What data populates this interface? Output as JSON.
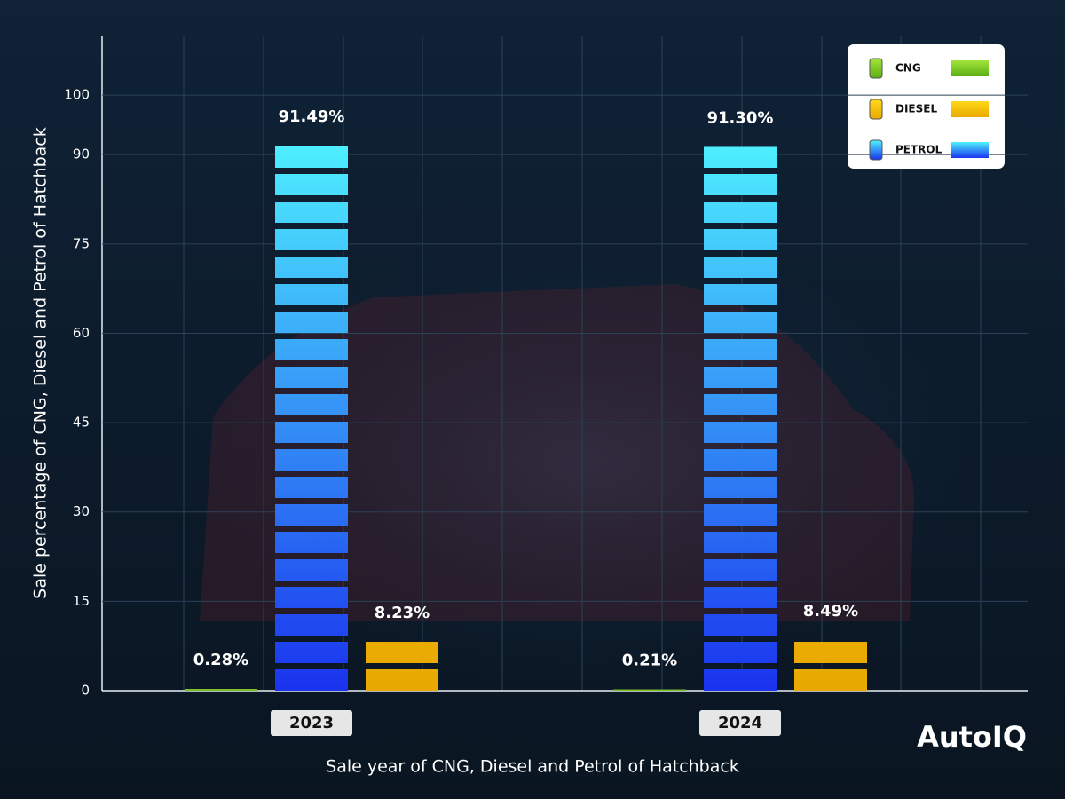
{
  "chart_data": {
    "type": "bar",
    "x_label": "Sale year of CNG, Diesel and Petrol of Hatchback",
    "y_label": "Sale percentage of CNG, Diesel and Petrol of Hatchback",
    "categories": [
      "2023",
      "2024"
    ],
    "series": [
      {
        "name": "CNG",
        "color": [
          "#5cae14",
          "#a4e43a"
        ],
        "values": [
          0.28,
          0.21
        ],
        "value_labels": [
          "0.28%",
          "0.21%"
        ]
      },
      {
        "name": "DIESEL",
        "color": [
          "#e8a800",
          "#ffd81a"
        ],
        "values": [
          8.23,
          8.49
        ],
        "value_labels": [
          "8.23%",
          "8.49%"
        ]
      },
      {
        "name": "PETROL",
        "color": [
          "#1a33ee",
          "#4ff2ff"
        ],
        "values": [
          91.49,
          91.3
        ],
        "value_labels": [
          "91.49%",
          "91.30%"
        ]
      }
    ],
    "ylim": [
      0,
      110
    ],
    "yticks": [
      0,
      15,
      30,
      45,
      60,
      75,
      90,
      100
    ],
    "grid": true,
    "legend": "top-right",
    "brand": "AutoIQ"
  }
}
